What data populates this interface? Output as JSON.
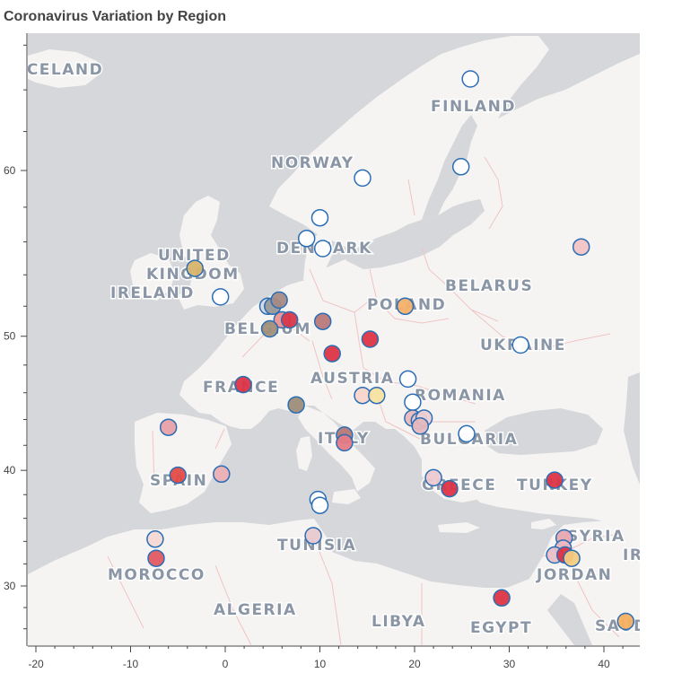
{
  "title": "Coronavirus Variation by Region",
  "country_labels": [
    "ICELAND",
    "FINLAND",
    "NORWAY",
    "UNITED",
    "KINGDOM",
    "IRELAND",
    "DENMARK",
    "BELARUS",
    "POLAND",
    "BELGIUM",
    "UKRAINE",
    "FRANCE",
    "AUSTRIA",
    "ROMANIA",
    "ITALY",
    "BULGARIA",
    "SPAIN",
    "GREECE",
    "TURKEY",
    "SYRIA",
    "TUNISIA",
    "MOROCCO",
    "JORDAN",
    "ALGERIA",
    "LIBYA",
    "EGYPT",
    "SAUDI ARABIA",
    "IRAQ"
  ],
  "chart_data": {
    "type": "scatter",
    "title": "Coronavirus Variation by Region",
    "xlabel": "",
    "ylabel": "",
    "x_ticks": [
      -20,
      -10,
      0,
      10,
      20,
      30,
      40
    ],
    "y_ticks": [
      30,
      40,
      50,
      60
    ],
    "xlim": [
      -21,
      43
    ],
    "ylim": [
      25.5,
      69.5
    ],
    "grid": false,
    "legend": "none",
    "points": [
      {
        "x": 25.9,
        "y": 64.5,
        "color": "#ffffff"
      },
      {
        "x": 24.9,
        "y": 60.2,
        "color": "#ffffff"
      },
      {
        "x": 14.5,
        "y": 59.6,
        "color": "#ffffff"
      },
      {
        "x": 10.0,
        "y": 57.4,
        "color": "#ffffff"
      },
      {
        "x": 8.6,
        "y": 56.2,
        "color": "#ffffff"
      },
      {
        "x": 10.3,
        "y": 55.6,
        "color": "#ffffff"
      },
      {
        "x": 37.6,
        "y": 55.7,
        "color": "#f2c4c4"
      },
      {
        "x": -3.2,
        "y": 54.4,
        "color": "#d9b46a"
      },
      {
        "x": -0.5,
        "y": 52.6,
        "color": "#ffffff"
      },
      {
        "x": 4.5,
        "y": 52.0,
        "color": "#d3d9e2"
      },
      {
        "x": 5.0,
        "y": 52.0,
        "color": "#9a9a9a"
      },
      {
        "x": 5.7,
        "y": 52.4,
        "color": "#a58a85"
      },
      {
        "x": 6.0,
        "y": 51.1,
        "color": "#ef9090"
      },
      {
        "x": 6.8,
        "y": 51.1,
        "color": "#d93848"
      },
      {
        "x": 4.7,
        "y": 50.5,
        "color": "#a08f7a"
      },
      {
        "x": 10.3,
        "y": 51.0,
        "color": "#b8797a"
      },
      {
        "x": 19.0,
        "y": 52.0,
        "color": "#f4b06a"
      },
      {
        "x": 15.3,
        "y": 49.8,
        "color": "#dc3445"
      },
      {
        "x": 11.3,
        "y": 48.8,
        "color": "#dc3445"
      },
      {
        "x": 31.2,
        "y": 49.4,
        "color": "#ffffff"
      },
      {
        "x": 1.9,
        "y": 46.6,
        "color": "#dc3445"
      },
      {
        "x": 19.3,
        "y": 47.0,
        "color": "#ffffff"
      },
      {
        "x": 14.5,
        "y": 45.8,
        "color": "#f8d5cc"
      },
      {
        "x": 16.0,
        "y": 45.8,
        "color": "#f7e2a0"
      },
      {
        "x": 7.5,
        "y": 45.1,
        "color": "#9d8d7a"
      },
      {
        "x": 19.8,
        "y": 45.3,
        "color": "#ffffff"
      },
      {
        "x": 19.8,
        "y": 44.1,
        "color": "#e8b8bb"
      },
      {
        "x": 20.5,
        "y": 43.9,
        "color": "#e8c4c8"
      },
      {
        "x": 21.0,
        "y": 44.1,
        "color": "#ecd0d4"
      },
      {
        "x": 20.6,
        "y": 43.5,
        "color": "#e4b8be"
      },
      {
        "x": 25.5,
        "y": 42.9,
        "color": "#ffffff"
      },
      {
        "x": -6.0,
        "y": 43.4,
        "color": "#e8a0a8"
      },
      {
        "x": 12.6,
        "y": 42.8,
        "color": "#b77a78"
      },
      {
        "x": 12.6,
        "y": 42.2,
        "color": "#e57b86"
      },
      {
        "x": -5.0,
        "y": 39.6,
        "color": "#e34b47"
      },
      {
        "x": -0.4,
        "y": 39.7,
        "color": "#ecb0b5"
      },
      {
        "x": 22.0,
        "y": 39.4,
        "color": "#ecc9d0"
      },
      {
        "x": 23.7,
        "y": 38.5,
        "color": "#dc3445"
      },
      {
        "x": 34.8,
        "y": 39.2,
        "color": "#dc3445"
      },
      {
        "x": 9.8,
        "y": 37.6,
        "color": "#ffffff"
      },
      {
        "x": 10.0,
        "y": 37.1,
        "color": "#ffffff"
      },
      {
        "x": 9.3,
        "y": 34.5,
        "color": "#e8c8d0"
      },
      {
        "x": -7.4,
        "y": 34.2,
        "color": "#f4d8d4"
      },
      {
        "x": 35.8,
        "y": 34.3,
        "color": "#e8a8b0"
      },
      {
        "x": 35.7,
        "y": 33.4,
        "color": "#eeb8c0"
      },
      {
        "x": 34.8,
        "y": 32.8,
        "color": "#e8c0c8"
      },
      {
        "x": 35.9,
        "y": 32.8,
        "color": "#dc3445"
      },
      {
        "x": 36.6,
        "y": 32.5,
        "color": "#f5cc80"
      },
      {
        "x": -7.3,
        "y": 32.5,
        "color": "#e25a62"
      },
      {
        "x": 29.2,
        "y": 28.9,
        "color": "#dc3445"
      },
      {
        "x": 42.3,
        "y": 26.7,
        "color": "#f4b060"
      }
    ]
  }
}
